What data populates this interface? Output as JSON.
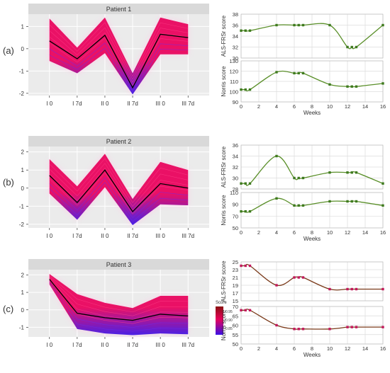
{
  "panels": [
    {
      "label": "(a)",
      "chart_data": {
        "type": "line",
        "title": "Patient 1",
        "categories": [
          "I 0",
          "I 7d",
          "II 0",
          "II 7d",
          "III 0",
          "III 7d"
        ],
        "ylim": [
          -2.1,
          1.55
        ],
        "yticks": [
          -2,
          -1,
          0,
          1
        ],
        "series": [
          {
            "role": "mean",
            "values": [
              0.35,
              -0.45,
              0.6,
              -1.75,
              0.65,
              0.5
            ]
          },
          {
            "role": "band_upper",
            "values": [
              1.35,
              0.05,
              1.4,
              -1.1,
              1.4,
              1.1
            ]
          },
          {
            "role": "band_lower",
            "values": [
              -0.55,
              -1.1,
              -0.2,
              -2.05,
              -0.25,
              -0.25
            ]
          }
        ],
        "grid": true
      },
      "side_charts": [
        {
          "type": "line",
          "ylabel": "ALS-FRSr score",
          "ylim": [
            30,
            38
          ],
          "yticks": [
            30,
            32,
            34,
            36,
            38
          ],
          "series": [
            {
              "x": [
                0,
                0.5,
                1,
                4,
                6,
                6.5,
                7,
                10,
                12,
                12.5,
                13,
                16
              ],
              "y": [
                35,
                35,
                35,
                36,
                36,
                36,
                36,
                36,
                32,
                32,
                32,
                36
              ]
            }
          ]
        },
        {
          "type": "line",
          "ylabel": "Norris score",
          "ylim": [
            90,
            130
          ],
          "yticks": [
            90,
            100,
            110,
            120,
            130
          ],
          "series": [
            {
              "x": [
                0,
                0.5,
                1,
                4,
                6,
                6.5,
                7,
                10,
                12,
                12.5,
                13,
                16
              ],
              "y": [
                102,
                102,
                102,
                119,
                118,
                118,
                118,
                107,
                105,
                105,
                105,
                108
              ]
            }
          ]
        }
      ]
    },
    {
      "label": "(b)",
      "chart_data": {
        "type": "line",
        "title": "Patient 2",
        "categories": [
          "I 0",
          "I 7d",
          "II 0",
          "II 7d",
          "III 0",
          "III 7d"
        ],
        "ylim": [
          -2.2,
          2.3
        ],
        "yticks": [
          -2,
          -1,
          0,
          1,
          2
        ],
        "series": [
          {
            "role": "mean",
            "values": [
              0.7,
              -0.8,
              1.0,
              -1.3,
              0.25,
              0.0
            ]
          },
          {
            "role": "band_upper",
            "values": [
              1.6,
              0.1,
              1.9,
              -0.6,
              1.45,
              1.0
            ]
          },
          {
            "role": "band_lower",
            "values": [
              -0.3,
              -1.75,
              0.05,
              -2.05,
              -0.9,
              -0.95
            ]
          }
        ],
        "grid": true
      },
      "side_charts": [
        {
          "type": "line",
          "ylabel": "ALS-FRSr score",
          "ylim": [
            28,
            36
          ],
          "yticks": [
            28,
            30,
            32,
            34,
            36
          ],
          "series": [
            {
              "x": [
                0,
                0.5,
                1,
                4,
                6,
                6.5,
                7,
                10,
                12,
                12.5,
                13,
                16
              ],
              "y": [
                29,
                29,
                29,
                34,
                30,
                30,
                30,
                31,
                31,
                31,
                31,
                29
              ]
            }
          ]
        },
        {
          "type": "line",
          "ylabel": "Norris score",
          "ylim": [
            50,
            110
          ],
          "yticks": [
            50,
            70,
            90,
            110
          ],
          "series": [
            {
              "x": [
                0,
                0.5,
                1,
                4,
                6,
                6.5,
                7,
                10,
                12,
                12.5,
                13,
                16
              ],
              "y": [
                78,
                78,
                78,
                100,
                88,
                88,
                88,
                95,
                95,
                95,
                95,
                88
              ]
            }
          ]
        }
      ]
    },
    {
      "label": "(c)",
      "chart_data": {
        "type": "line",
        "title": "Patient 3",
        "categories": [
          "I 0",
          "I 7d",
          "II 0",
          "II 7d",
          "III 0",
          "III 7d"
        ],
        "ylim": [
          -1.55,
          2.3
        ],
        "yticks": [
          -1,
          0,
          1,
          2
        ],
        "series": [
          {
            "role": "mean",
            "values": [
              1.75,
              -0.2,
              -0.45,
              -0.6,
              -0.25,
              -0.35
            ]
          },
          {
            "role": "band_upper",
            "values": [
              2.05,
              0.9,
              0.4,
              0.1,
              0.8,
              0.8
            ]
          },
          {
            "role": "band_lower",
            "values": [
              1.45,
              -1.1,
              -1.35,
              -1.45,
              -1.35,
              -1.4
            ]
          }
        ],
        "legend": {
          "title": "Score",
          "labels": [
            "0.95",
            "0.90",
            "0.85"
          ],
          "position": "right"
        },
        "grid": true
      },
      "side_charts": [
        {
          "type": "line",
          "ylabel": "ALS-FRSr score",
          "ylim": [
            15,
            25
          ],
          "yticks": [
            15,
            17,
            19,
            21,
            23,
            25
          ],
          "series": [
            {
              "x": [
                0,
                0.5,
                1,
                4,
                6,
                6.5,
                7,
                10,
                12,
                12.5,
                13,
                16
              ],
              "y": [
                24,
                24,
                24,
                19,
                21,
                21,
                21,
                18,
                18,
                18,
                18,
                18
              ]
            }
          ]
        },
        {
          "type": "line",
          "ylabel": "Norris score",
          "ylim": [
            50,
            70
          ],
          "yticks": [
            50,
            55,
            60,
            65,
            70
          ],
          "series": [
            {
              "x": [
                0,
                0.5,
                1,
                4,
                6,
                6.5,
                7,
                10,
                12,
                12.5,
                13,
                16
              ],
              "y": [
                68,
                68,
                68,
                60,
                58,
                58,
                58,
                58,
                59,
                59,
                59,
                59
              ]
            }
          ]
        }
      ]
    }
  ],
  "weeks_axis": {
    "label": "Weeks",
    "ticks": [
      0,
      2,
      4,
      6,
      8,
      10,
      12,
      14,
      16
    ],
    "xlim": [
      0,
      16
    ]
  },
  "colors": {
    "panel_bg": "#ebebeb",
    "strip_bg": "#d9d9d9",
    "grid": "#ffffff",
    "band_high": "#e8005a",
    "band_low": "#3a10e6",
    "glow": "#ffc8e8",
    "mean_line": "#000000",
    "green_line": "#5a8f29",
    "green_marker": "#3e7a1e",
    "brown_line": "#7a3a1a",
    "brown_marker": "#c2185b",
    "grid_light": "#dcdcdc"
  }
}
